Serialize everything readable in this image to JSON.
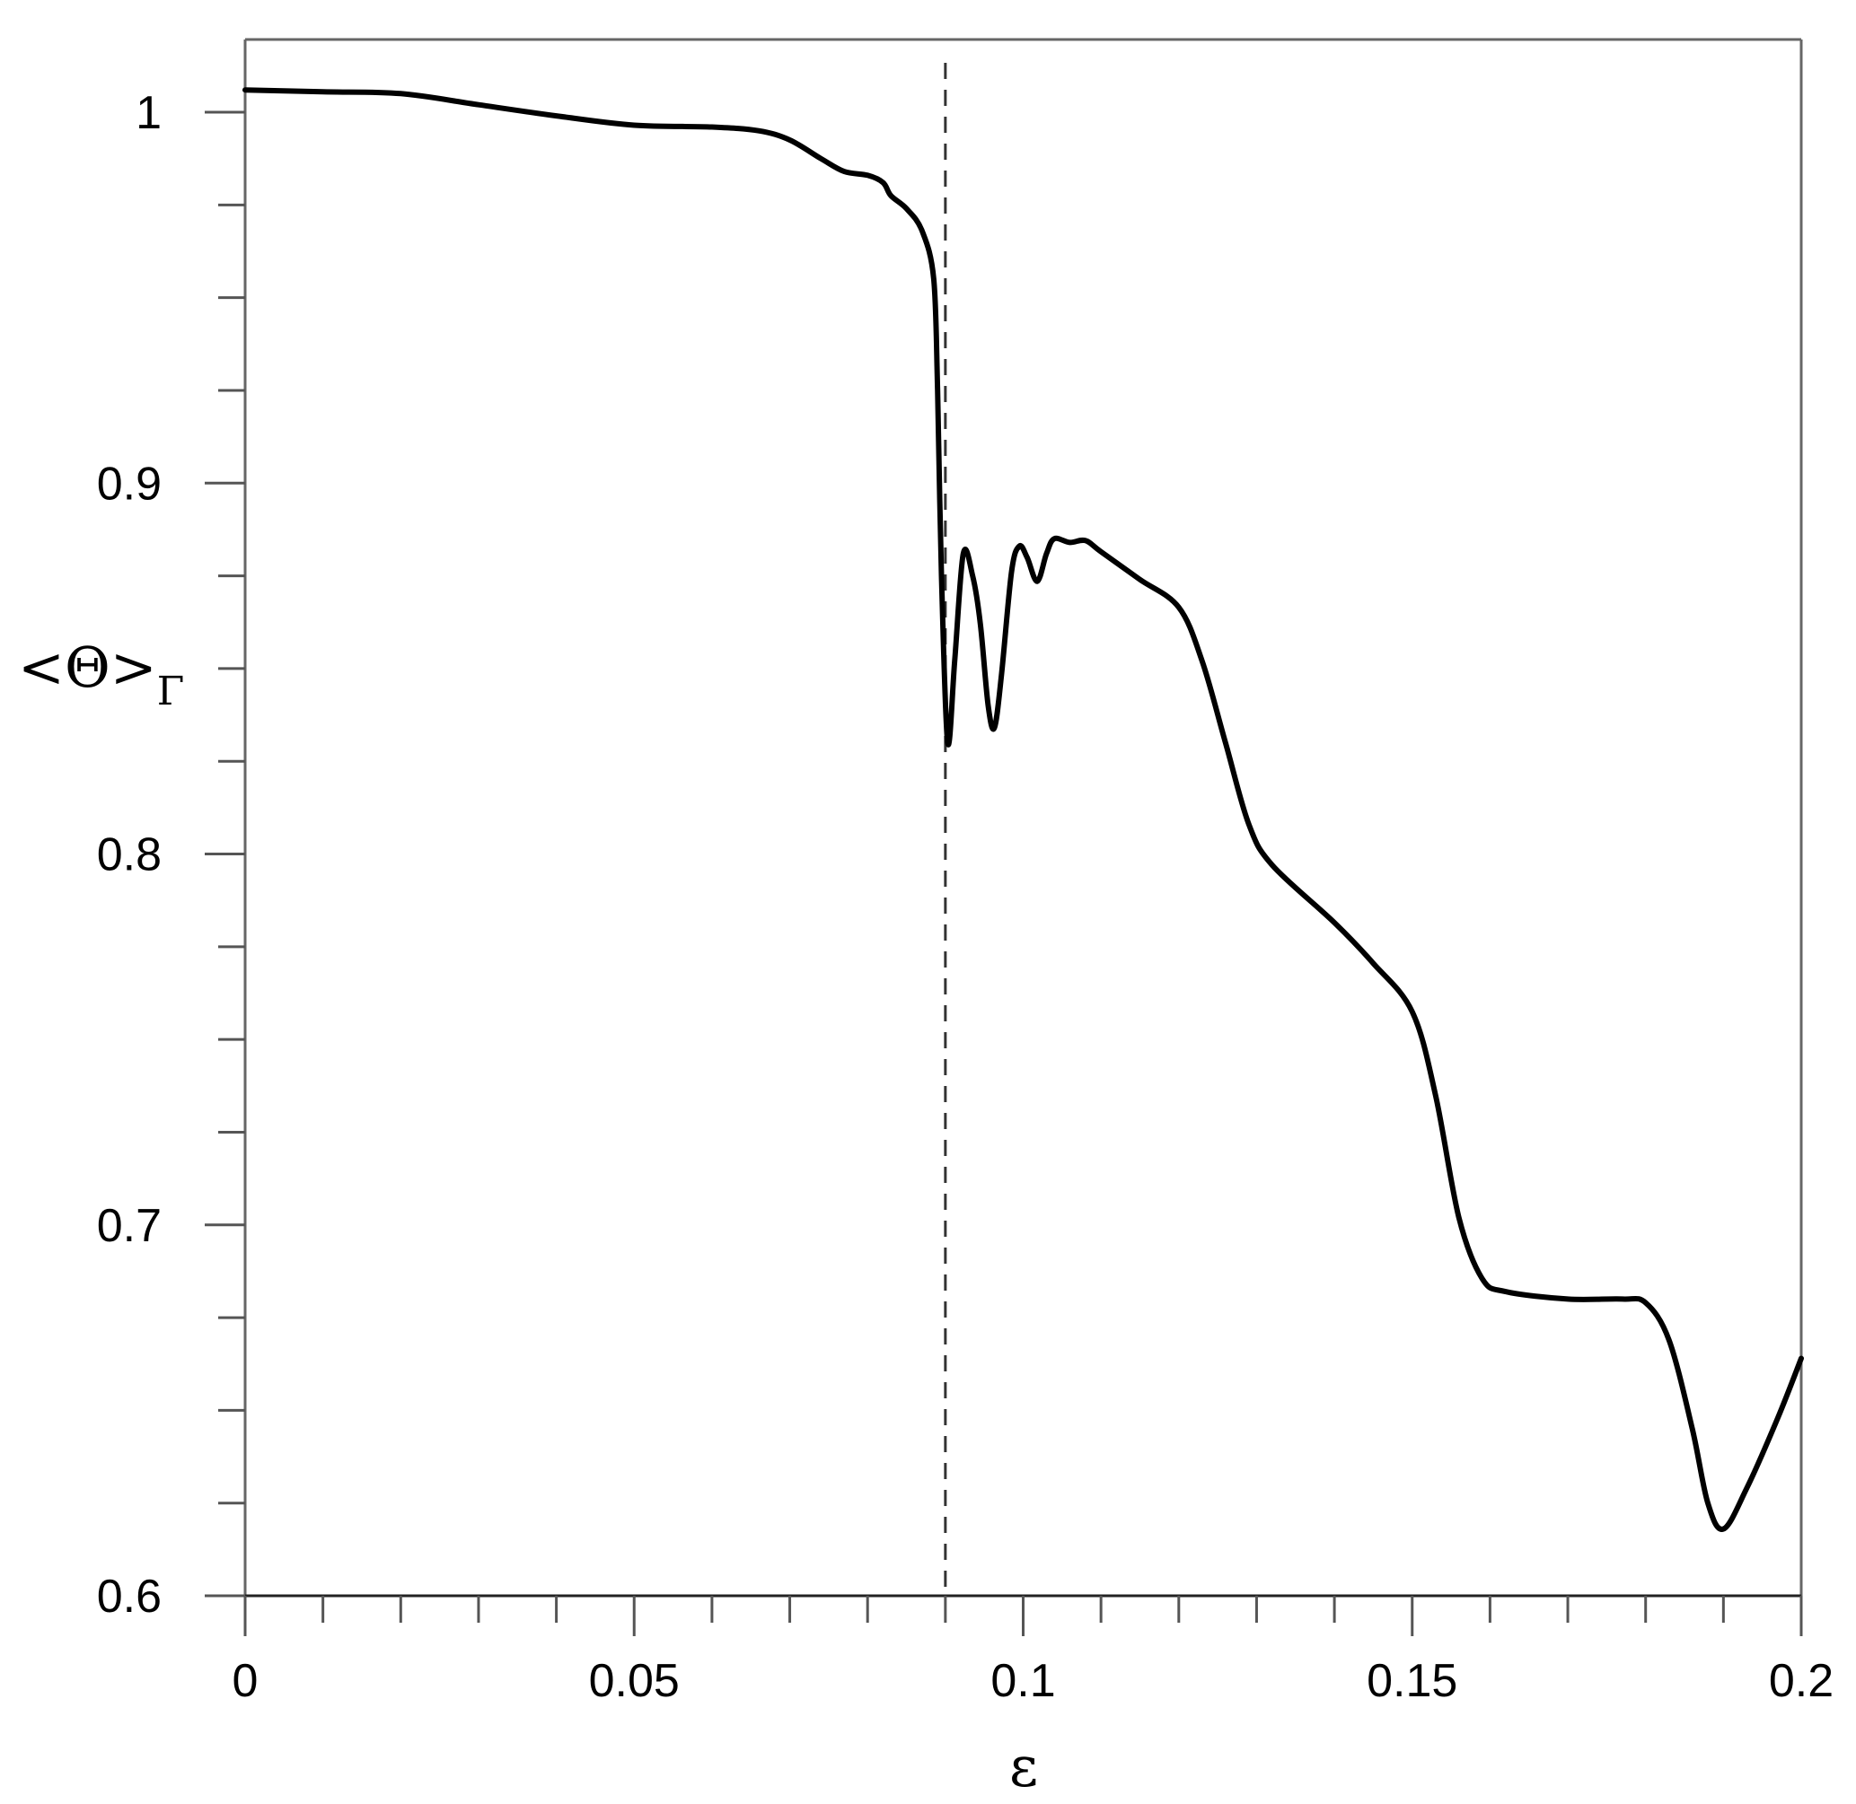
{
  "chart_data": {
    "type": "line",
    "title": "",
    "xlabel": "ε",
    "ylabel": "<Θ>",
    "ylabel_subscript": "Γ",
    "xlim": [
      0,
      0.2
    ],
    "ylim": [
      0.6,
      1.02
    ],
    "x_ticks": [
      0,
      0.05,
      0.1,
      0.15,
      0.2
    ],
    "x_tick_labels": [
      "0",
      "0.05",
      "0.1",
      "0.15",
      "0.2"
    ],
    "x_minor_step": 0.01,
    "y_ticks": [
      0.6,
      0.7,
      0.8,
      0.9,
      1.0
    ],
    "y_tick_labels": [
      "0.6",
      "0.7",
      "0.8",
      "0.9",
      "1"
    ],
    "y_minor_step": 0.025,
    "grid": false,
    "reference_line": {
      "x": 0.09,
      "style": "dashed"
    },
    "colors": {
      "line": "#000000",
      "axes": "#555555"
    },
    "series": [
      {
        "values": [
          [
            0.0,
            1.006
          ],
          [
            0.01,
            1.0055
          ],
          [
            0.02,
            1.005
          ],
          [
            0.03,
            1.002
          ],
          [
            0.04,
            0.999
          ],
          [
            0.05,
            0.9965
          ],
          [
            0.06,
            0.996
          ],
          [
            0.066,
            0.995
          ],
          [
            0.07,
            0.9925
          ],
          [
            0.074,
            0.9875
          ],
          [
            0.077,
            0.984
          ],
          [
            0.08,
            0.983
          ],
          [
            0.082,
            0.981
          ],
          [
            0.083,
            0.9775
          ],
          [
            0.085,
            0.974
          ],
          [
            0.087,
            0.968
          ],
          [
            0.0885,
            0.955
          ],
          [
            0.089,
            0.925
          ],
          [
            0.0895,
            0.875
          ],
          [
            0.0903,
            0.83
          ],
          [
            0.0912,
            0.852
          ],
          [
            0.0923,
            0.881
          ],
          [
            0.0935,
            0.875
          ],
          [
            0.0945,
            0.862
          ],
          [
            0.0955,
            0.84
          ],
          [
            0.0963,
            0.834
          ],
          [
            0.0972,
            0.848
          ],
          [
            0.0985,
            0.876
          ],
          [
            0.0995,
            0.883
          ],
          [
            0.1005,
            0.88
          ],
          [
            0.1018,
            0.8735
          ],
          [
            0.103,
            0.881
          ],
          [
            0.104,
            0.885
          ],
          [
            0.106,
            0.884
          ],
          [
            0.108,
            0.8845
          ],
          [
            0.11,
            0.8815
          ],
          [
            0.115,
            0.874
          ],
          [
            0.12,
            0.8665
          ],
          [
            0.123,
            0.852
          ],
          [
            0.126,
            0.83
          ],
          [
            0.129,
            0.808
          ],
          [
            0.132,
            0.797
          ],
          [
            0.14,
            0.7815
          ],
          [
            0.145,
            0.7705
          ],
          [
            0.15,
            0.7575
          ],
          [
            0.153,
            0.735
          ],
          [
            0.156,
            0.702
          ],
          [
            0.159,
            0.6855
          ],
          [
            0.162,
            0.682
          ],
          [
            0.17,
            0.68
          ],
          [
            0.177,
            0.68
          ],
          [
            0.18,
            0.679
          ],
          [
            0.183,
            0.669
          ],
          [
            0.186,
            0.645
          ],
          [
            0.188,
            0.625
          ],
          [
            0.19,
            0.618
          ],
          [
            0.193,
            0.629
          ],
          [
            0.197,
            0.648
          ],
          [
            0.2,
            0.664
          ]
        ]
      }
    ]
  }
}
